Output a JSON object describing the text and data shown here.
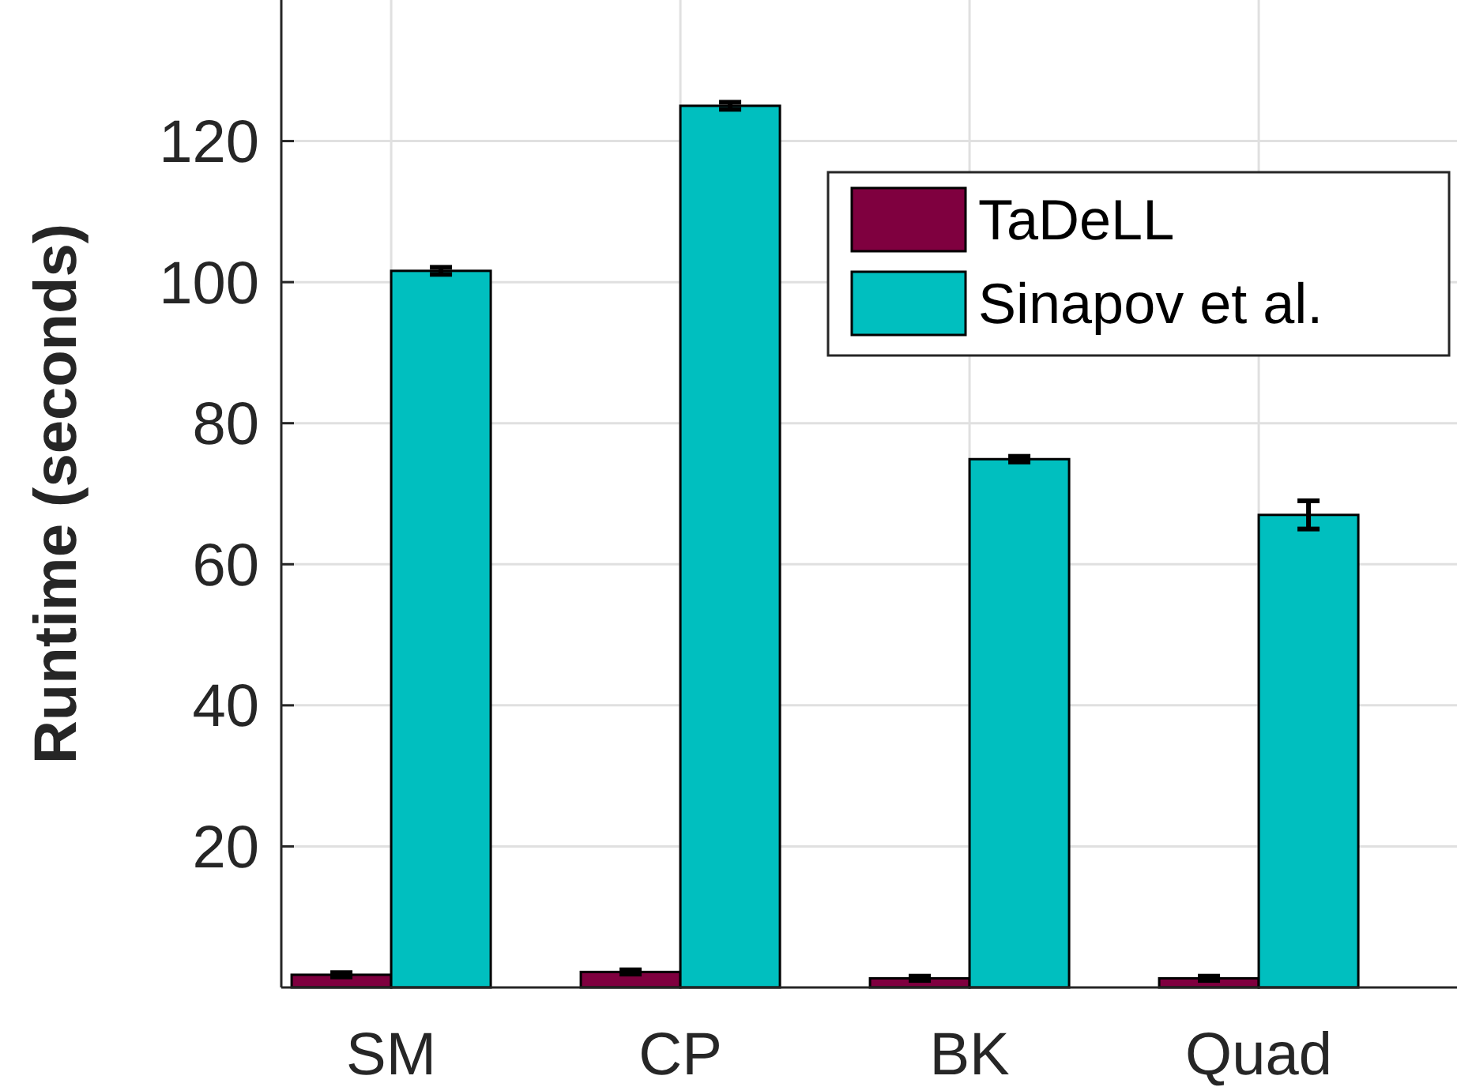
{
  "chart_data": {
    "type": "bar",
    "ylabel": "Runtime (seconds)",
    "categories": [
      "SM",
      "CP",
      "BK",
      "Quad"
    ],
    "series": [
      {
        "name": "TaDeLL",
        "color": "#7f003f",
        "values": [
          1.8,
          2.2,
          1.3,
          1.3
        ],
        "errors": [
          0.3,
          0.3,
          0.3,
          0.3
        ]
      },
      {
        "name": "Sinapov et al.",
        "color": "#00bfbf",
        "values": [
          101.6,
          125.0,
          74.9,
          67.0
        ],
        "errors": [
          0.5,
          0.5,
          0.4,
          2.0
        ]
      }
    ],
    "ylim": [
      0,
      140
    ],
    "yticks": [
      20,
      40,
      60,
      80,
      100,
      120
    ],
    "grid": true,
    "legend": "top right"
  }
}
